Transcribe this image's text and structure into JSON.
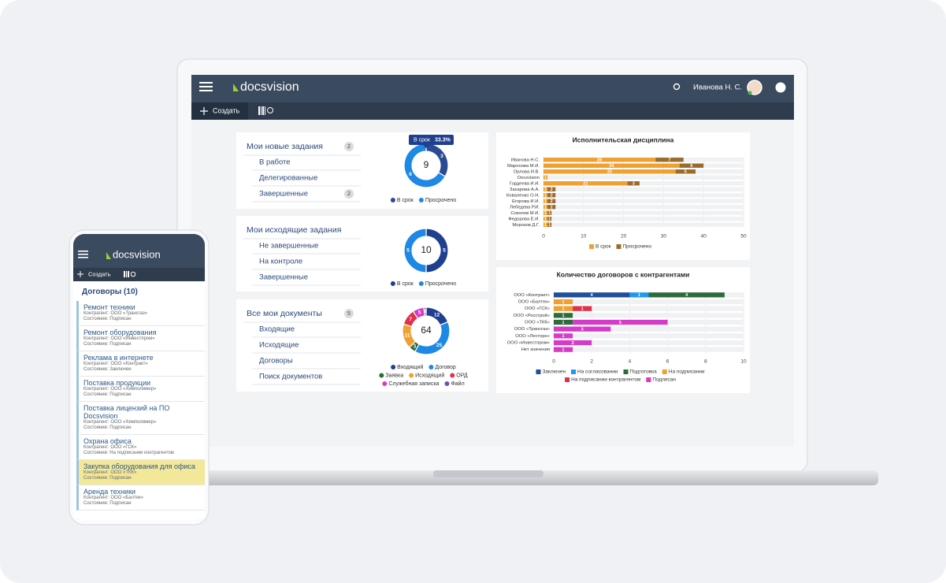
{
  "laptop": {
    "logo": "docsvision",
    "user": "Иванова Н. С.",
    "create": "Создать",
    "widgets": [
      {
        "title": "Мои новые задания",
        "badge": 2,
        "items": [
          {
            "label": "В работе"
          },
          {
            "label": "Делегированные"
          },
          {
            "label": "Завершенные",
            "badge": 2
          }
        ]
      },
      {
        "title": "Мои исходящие задания",
        "items": [
          {
            "label": "Не завершенные"
          },
          {
            "label": "На контроле"
          },
          {
            "label": "Завершенные"
          }
        ]
      },
      {
        "title": "Все мои документы",
        "badge": 5,
        "items": [
          {
            "label": "Входящие"
          },
          {
            "label": "Исходящие"
          },
          {
            "label": "Договоры"
          },
          {
            "label": "Поиск документов"
          }
        ]
      }
    ]
  },
  "chart_data": [
    {
      "type": "donut",
      "total": 9,
      "categories": [
        "В срок",
        "Просрочено"
      ],
      "values": [
        3,
        6
      ],
      "colors": [
        "#2a4a92",
        "#1e88e5"
      ],
      "tooltip": {
        "category": "В срок",
        "value": 33.3,
        "value_label": "33.3%"
      }
    },
    {
      "type": "donut",
      "total": 10,
      "categories": [
        "В срок",
        "Просрочено"
      ],
      "values": [
        5,
        5
      ],
      "colors": [
        "#1f3f8f",
        "#1e88e5"
      ]
    },
    {
      "type": "donut",
      "total": 64,
      "categories": [
        "Входящий",
        "Договор",
        "Заявка",
        "Исходящий",
        "ОРД",
        "Служебная записка",
        "Файл"
      ],
      "values": [
        12,
        25,
        3,
        11,
        7,
        5,
        1
      ],
      "colors": [
        "#1f3f8f",
        "#1e88e5",
        "#2e6b3a",
        "#f0a030",
        "#e0304a",
        "#d63ac8",
        "#6a4fc0"
      ],
      "segment_order": [
        0,
        1,
        2,
        3,
        4,
        5,
        6
      ]
    },
    {
      "type": "bar",
      "orientation": "horizontal",
      "stacked": true,
      "title": "Исполнительская дисциплина",
      "categories": [
        "Иванова Н.С.",
        "Маронова М.И.",
        "Орлова И.В.",
        "Docsvision",
        "Гордеева И.И.",
        "Захарова А.А.",
        "Коваленко О.Н.",
        "Егорова И.И.",
        "Лебедева Р.И.",
        "Соколов М.И.",
        "Федорова Е.И.",
        "Морозов Д.Г."
      ],
      "series": [
        {
          "name": "В срок",
          "color": "#f0a030",
          "values": [
            28,
            34,
            33,
            1,
            21,
            1,
            1,
            1,
            1,
            1,
            1,
            1
          ]
        },
        {
          "name": "Просрочено",
          "color": "#9b6b2a",
          "values": [
            7,
            6,
            5,
            null,
            3,
            2,
            2,
            2,
            2,
            1,
            1,
            1
          ]
        }
      ],
      "xlim": [
        0,
        50
      ],
      "xticks": [
        0,
        10,
        20,
        30,
        40,
        50
      ],
      "grid": true
    },
    {
      "type": "bar",
      "orientation": "horizontal",
      "stacked": true,
      "title": "Количество договоров с контрагентами",
      "categories": [
        "ООО «Контракт»",
        "ООО «Балтек»",
        "ООО «ГСК»",
        "ООО «Росстрой»",
        "ООО «ТКК»",
        "ООО «Трансгаз»",
        "ООО «Лесторн»",
        "ООО «Инвестпром»",
        "Нет значения"
      ],
      "series": [
        {
          "name": "Заключен",
          "color": "#1f4e9a",
          "values": [
            4,
            null,
            null,
            null,
            null,
            null,
            null,
            null,
            null
          ]
        },
        {
          "name": "На согласовании",
          "color": "#2196f3",
          "values": [
            1,
            null,
            null,
            null,
            null,
            null,
            null,
            null,
            null
          ]
        },
        {
          "name": "Подготовка",
          "color": "#2e6b3a",
          "values": [
            4,
            null,
            null,
            1,
            1,
            null,
            null,
            null,
            null
          ]
        },
        {
          "name": "На подписании",
          "color": "#f0a030",
          "values": [
            null,
            1,
            1,
            null,
            null,
            null,
            null,
            null,
            null
          ]
        },
        {
          "name": "На подписании контрагентом",
          "color": "#e0304a",
          "values": [
            null,
            null,
            1,
            null,
            null,
            null,
            null,
            null,
            null
          ]
        },
        {
          "name": "Подписан",
          "color": "#d63ac8",
          "values": [
            null,
            null,
            null,
            null,
            5,
            3,
            1,
            2,
            1
          ]
        }
      ],
      "xlim": [
        0,
        10
      ],
      "xticks": [
        0,
        2,
        4,
        6,
        8,
        10
      ],
      "grid": true
    }
  ],
  "mobile": {
    "logo": "docsvision",
    "create": "Создать",
    "list_title": "Договоры (10)",
    "items": [
      {
        "title": "Ремонт техники",
        "counterparty": "Контрагент: ООО «Трансгаз»",
        "state": "Состояние: Подписан"
      },
      {
        "title": "Ремонт оборудования",
        "counterparty": "Контрагент: ООО «Инвестпром»",
        "state": "Состояние: Подписан"
      },
      {
        "title": "Реклама в интернете",
        "counterparty": "Контрагент: ООО «Контракт»",
        "state": "Состояние: Заключен"
      },
      {
        "title": "Поставка продукции",
        "counterparty": "Контрагент: ООО «Химполимер»",
        "state": "Состояние: Подписан"
      },
      {
        "title": "Поставка лицензий на ПО Docsvision",
        "counterparty": "Контрагент: ООО «Химполимер»",
        "state": "Состояние: Подписан"
      },
      {
        "title": "Охрана офиса",
        "counterparty": "Контрагент: ООО «ГСК»",
        "state": "Состояние: На подписании контрагентом"
      },
      {
        "title": "Закупка оборудования для офиса",
        "counterparty": "Контрагент: ООО «ТКК»",
        "state": "Состояние: Подписан",
        "highlighted": true
      },
      {
        "title": "Аренда техники",
        "counterparty": "Контрагент: ООО «Балтек»",
        "state": "Состояние: Подписан"
      }
    ]
  }
}
